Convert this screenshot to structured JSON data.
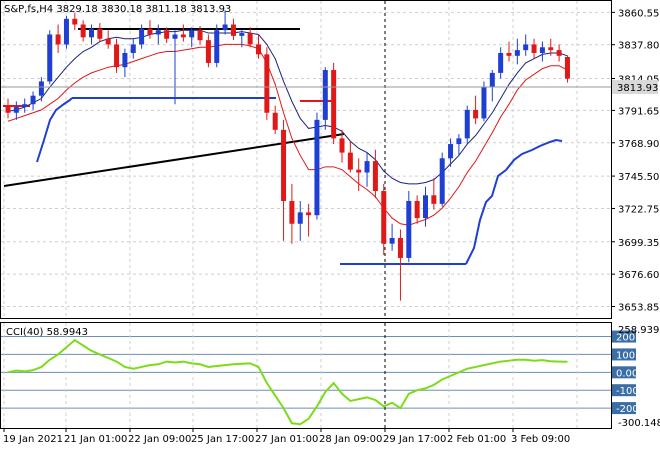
{
  "window": {
    "symbol": "S&P,fs,H4",
    "ohlc": "3829.18 3830.18 3811.18 3813.93",
    "current_price": "3813.93"
  },
  "colors": {
    "bull": "#1f3fd2",
    "bear": "#e01818",
    "blue_ma": "#1a237e",
    "red_ma": "#e01818",
    "trendline": "#000000",
    "cci": "#7ddc1a",
    "grid": "#cfcfcf",
    "price_label_bg": "#d9d9d9"
  },
  "price_axis": {
    "labels": [
      "3860.55",
      "3837.80",
      "3814.05",
      "3791.65",
      "3768.90",
      "3745.50",
      "3722.75",
      "3699.35",
      "3676.60",
      "3653.85"
    ],
    "values": [
      3860.55,
      3837.8,
      3814.05,
      3791.65,
      3768.9,
      3745.5,
      3722.75,
      3699.35,
      3676.6,
      3653.85
    ]
  },
  "time_axis": {
    "labels": [
      "19 Jan 2021",
      "21 Jan 01:00",
      "22 Jan 09:00",
      "25 Jan 17:00",
      "27 Jan 01:00",
      "28 Jan 09:00",
      "29 Jan 17:00",
      "2 Feb 01:00",
      "3 Feb 09:00"
    ]
  },
  "indicator": {
    "label": "CCI(40) 58.9943",
    "max_label": "258.9393",
    "min_label": "-300.148",
    "levels": [
      "200",
      "100",
      "0.00",
      "-100",
      "-200"
    ]
  },
  "chart_data": {
    "type": "candlestick",
    "ylim": [
      3650,
      3865
    ],
    "candles": [
      {
        "o": 3795,
        "h": 3800,
        "l": 3786,
        "c": 3790
      },
      {
        "o": 3790,
        "h": 3798,
        "l": 3785,
        "c": 3794
      },
      {
        "o": 3794,
        "h": 3800,
        "l": 3790,
        "c": 3796
      },
      {
        "o": 3796,
        "h": 3805,
        "l": 3792,
        "c": 3802
      },
      {
        "o": 3802,
        "h": 3815,
        "l": 3798,
        "c": 3812
      },
      {
        "o": 3812,
        "h": 3848,
        "l": 3810,
        "c": 3845
      },
      {
        "o": 3845,
        "h": 3852,
        "l": 3832,
        "c": 3838
      },
      {
        "o": 3838,
        "h": 3858,
        "l": 3835,
        "c": 3856
      },
      {
        "o": 3856,
        "h": 3860,
        "l": 3848,
        "c": 3852
      },
      {
        "o": 3852,
        "h": 3855,
        "l": 3840,
        "c": 3843
      },
      {
        "o": 3843,
        "h": 3852,
        "l": 3838,
        "c": 3849
      },
      {
        "o": 3849,
        "h": 3853,
        "l": 3840,
        "c": 3842
      },
      {
        "o": 3842,
        "h": 3848,
        "l": 3835,
        "c": 3838
      },
      {
        "o": 3838,
        "h": 3842,
        "l": 3818,
        "c": 3822
      },
      {
        "o": 3822,
        "h": 3835,
        "l": 3815,
        "c": 3832
      },
      {
        "o": 3832,
        "h": 3842,
        "l": 3828,
        "c": 3838
      },
      {
        "o": 3838,
        "h": 3852,
        "l": 3835,
        "c": 3849
      },
      {
        "o": 3849,
        "h": 3855,
        "l": 3842,
        "c": 3845
      },
      {
        "o": 3845,
        "h": 3852,
        "l": 3838,
        "c": 3848
      },
      {
        "o": 3848,
        "h": 3850,
        "l": 3839,
        "c": 3842
      },
      {
        "o": 3842,
        "h": 3848,
        "l": 3796,
        "c": 3845
      },
      {
        "o": 3845,
        "h": 3852,
        "l": 3840,
        "c": 3843
      },
      {
        "o": 3843,
        "h": 3850,
        "l": 3836,
        "c": 3848
      },
      {
        "o": 3848,
        "h": 3851,
        "l": 3838,
        "c": 3841
      },
      {
        "o": 3841,
        "h": 3845,
        "l": 3822,
        "c": 3825
      },
      {
        "o": 3825,
        "h": 3852,
        "l": 3822,
        "c": 3848
      },
      {
        "o": 3848,
        "h": 3862,
        "l": 3845,
        "c": 3852
      },
      {
        "o": 3852,
        "h": 3856,
        "l": 3841,
        "c": 3844
      },
      {
        "o": 3844,
        "h": 3848,
        "l": 3836,
        "c": 3846
      },
      {
        "o": 3846,
        "h": 3850,
        "l": 3836,
        "c": 3838
      },
      {
        "o": 3838,
        "h": 3845,
        "l": 3828,
        "c": 3831
      },
      {
        "o": 3831,
        "h": 3836,
        "l": 3785,
        "c": 3790
      },
      {
        "o": 3790,
        "h": 3795,
        "l": 3775,
        "c": 3778
      },
      {
        "o": 3778,
        "h": 3785,
        "l": 3700,
        "c": 3728
      },
      {
        "o": 3728,
        "h": 3740,
        "l": 3698,
        "c": 3712
      },
      {
        "o": 3712,
        "h": 3728,
        "l": 3700,
        "c": 3720
      },
      {
        "o": 3720,
        "h": 3726,
        "l": 3703,
        "c": 3718
      },
      {
        "o": 3718,
        "h": 3790,
        "l": 3715,
        "c": 3785
      },
      {
        "o": 3785,
        "h": 3822,
        "l": 3778,
        "c": 3820
      },
      {
        "o": 3820,
        "h": 3825,
        "l": 3768,
        "c": 3772
      },
      {
        "o": 3772,
        "h": 3778,
        "l": 3755,
        "c": 3762
      },
      {
        "o": 3762,
        "h": 3770,
        "l": 3748,
        "c": 3750
      },
      {
        "o": 3750,
        "h": 3758,
        "l": 3735,
        "c": 3748
      },
      {
        "o": 3748,
        "h": 3762,
        "l": 3738,
        "c": 3756
      },
      {
        "o": 3756,
        "h": 3764,
        "l": 3730,
        "c": 3735
      },
      {
        "o": 3735,
        "h": 3740,
        "l": 3690,
        "c": 3698
      },
      {
        "o": 3698,
        "h": 3712,
        "l": 3693,
        "c": 3702
      },
      {
        "o": 3702,
        "h": 3708,
        "l": 3658,
        "c": 3688
      },
      {
        "o": 3688,
        "h": 3735,
        "l": 3685,
        "c": 3728
      },
      {
        "o": 3728,
        "h": 3732,
        "l": 3712,
        "c": 3716
      },
      {
        "o": 3716,
        "h": 3738,
        "l": 3710,
        "c": 3732
      },
      {
        "o": 3732,
        "h": 3744,
        "l": 3722,
        "c": 3726
      },
      {
        "o": 3726,
        "h": 3762,
        "l": 3724,
        "c": 3758
      },
      {
        "o": 3758,
        "h": 3772,
        "l": 3752,
        "c": 3768
      },
      {
        "o": 3768,
        "h": 3775,
        "l": 3760,
        "c": 3772
      },
      {
        "o": 3772,
        "h": 3795,
        "l": 3768,
        "c": 3792
      },
      {
        "o": 3792,
        "h": 3802,
        "l": 3782,
        "c": 3786
      },
      {
        "o": 3786,
        "h": 3812,
        "l": 3784,
        "c": 3808
      },
      {
        "o": 3808,
        "h": 3820,
        "l": 3798,
        "c": 3818
      },
      {
        "o": 3818,
        "h": 3836,
        "l": 3814,
        "c": 3832
      },
      {
        "o": 3832,
        "h": 3840,
        "l": 3826,
        "c": 3830
      },
      {
        "o": 3830,
        "h": 3842,
        "l": 3824,
        "c": 3834
      },
      {
        "o": 3834,
        "h": 3845,
        "l": 3830,
        "c": 3838
      },
      {
        "o": 3838,
        "h": 3842,
        "l": 3828,
        "c": 3832
      },
      {
        "o": 3832,
        "h": 3840,
        "l": 3826,
        "c": 3836
      },
      {
        "o": 3836,
        "h": 3842,
        "l": 3830,
        "c": 3834
      },
      {
        "o": 3834,
        "h": 3838,
        "l": 3826,
        "c": 3830
      },
      {
        "o": 3829.18,
        "h": 3830.18,
        "l": 3811.18,
        "c": 3813.93
      }
    ],
    "blue_ma": [
      3791,
      3792,
      3794,
      3797,
      3800,
      3808,
      3815,
      3822,
      3828,
      3833,
      3836,
      3840,
      3842,
      3843,
      3842,
      3842,
      3843,
      3845,
      3846,
      3847,
      3847,
      3848,
      3848,
      3848,
      3846,
      3846,
      3846,
      3846,
      3847,
      3846,
      3845,
      3838,
      3828,
      3812,
      3798,
      3786,
      3779,
      3780,
      3781,
      3780,
      3777,
      3770,
      3765,
      3762,
      3757,
      3749,
      3744,
      3741,
      3740,
      3740,
      3741,
      3743,
      3748,
      3754,
      3760,
      3768,
      3774,
      3782,
      3790,
      3800,
      3810,
      3818,
      3825,
      3828,
      3831,
      3832,
      3832,
      3830
    ],
    "red_ma": [
      3784,
      3786,
      3788,
      3790,
      3792,
      3796,
      3800,
      3806,
      3811,
      3815,
      3818,
      3820,
      3822,
      3823,
      3824,
      3826,
      3828,
      3830,
      3832,
      3833,
      3833,
      3834,
      3835,
      3836,
      3836,
      3837,
      3838,
      3838,
      3838,
      3837,
      3835,
      3825,
      3810,
      3790,
      3772,
      3760,
      3750,
      3750,
      3752,
      3752,
      3750,
      3745,
      3740,
      3736,
      3731,
      3723,
      3716,
      3712,
      3711,
      3713,
      3715,
      3718,
      3723,
      3730,
      3738,
      3748,
      3756,
      3766,
      3776,
      3787,
      3796,
      3806,
      3813,
      3817,
      3821,
      3823,
      3823,
      3820
    ],
    "cci": [
      0,
      10,
      5,
      12,
      30,
      70,
      100,
      140,
      180,
      150,
      120,
      100,
      80,
      60,
      30,
      20,
      30,
      40,
      45,
      60,
      55,
      60,
      50,
      45,
      30,
      35,
      40,
      45,
      48,
      50,
      30,
      -60,
      -130,
      -200,
      -285,
      -290,
      -260,
      -190,
      -110,
      -60,
      -120,
      -160,
      -150,
      -140,
      -155,
      -190,
      -170,
      -200,
      -120,
      -100,
      -90,
      -70,
      -40,
      -20,
      0,
      20,
      30,
      40,
      50,
      60,
      65,
      70,
      70,
      65,
      68,
      62,
      60,
      58.99
    ],
    "cci_ylim": [
      -300.148,
      258.9393
    ]
  }
}
